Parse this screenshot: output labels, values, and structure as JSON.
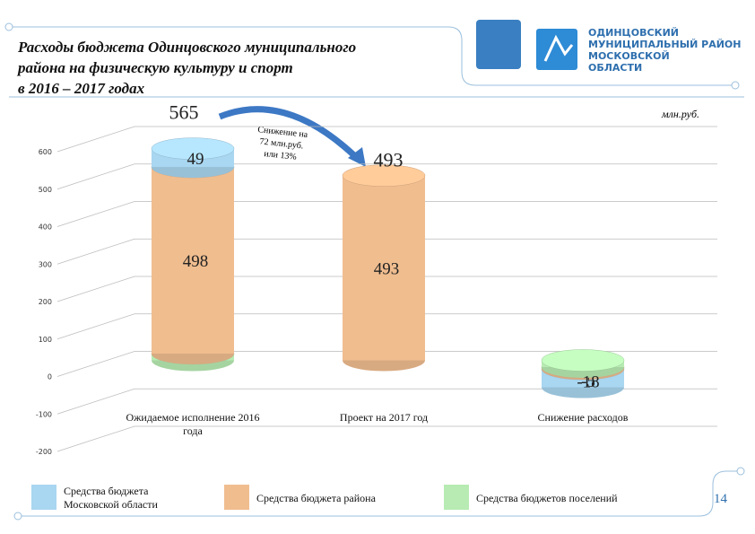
{
  "chart_data": {
    "type": "bar3d",
    "title": [
      "Расходы бюджета Одинцовского муниципального",
      "района на физическую культуру и спорт",
      "в 2016 – 2017 годах"
    ],
    "unit": "млн.руб.",
    "annotation": [
      "Снижение на",
      "72 млн.руб.",
      "или 13%"
    ],
    "categories": [
      "Ожидаемое исполнение 2016 года",
      "Проект на 2017 год",
      "Снижение расходов"
    ],
    "series": [
      {
        "name": "Средства бюджетов поселений",
        "color": "#b7ebb3",
        "values": [
          18,
          null,
          -18
        ]
      },
      {
        "name": "Средства бюджета района",
        "color": "#f0bd8f",
        "values": [
          498,
          493,
          -5
        ]
      },
      {
        "name": "Средства бюджета Московской области",
        "color": "#a9d6f0",
        "values": [
          49,
          null,
          -49
        ]
      }
    ],
    "totals": [
      565,
      493,
      null
    ],
    "ylim": [
      -200,
      600
    ],
    "yticks": [
      -200,
      -100,
      0,
      100,
      200,
      300,
      400,
      500,
      600
    ]
  },
  "logo_text": [
    "ОДИНЦОВСКИЙ",
    "МУНИЦИПАЛЬНЫЙ РАЙОН",
    "МОСКОВСКОЙ",
    "ОБЛАСТИ"
  ],
  "page_number": 14
}
